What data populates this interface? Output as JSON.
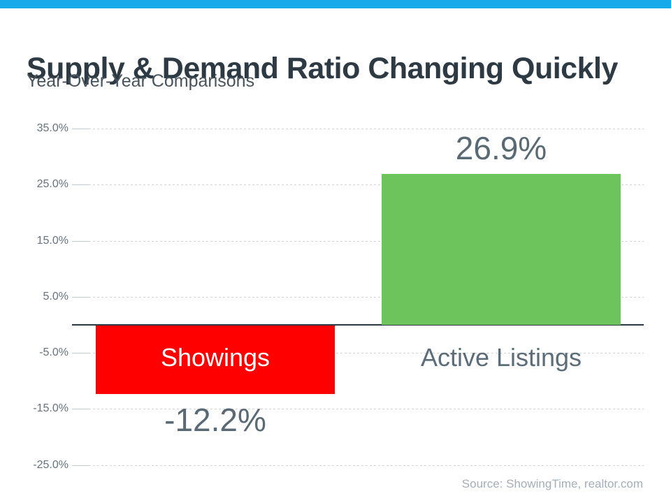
{
  "accent_color": "#17aaeb",
  "header": {
    "title": "Supply & Demand Ratio Changing Quickly",
    "subtitle": "Year-Over-Year Comparisons"
  },
  "chart_data": {
    "type": "bar",
    "title": "Supply & Demand Ratio Changing Quickly",
    "subtitle": "Year-Over-Year Comparisons",
    "categories": [
      "Showings",
      "Active Listings"
    ],
    "values": [
      -12.2,
      26.9
    ],
    "value_labels": [
      "-12.2%",
      "26.9%"
    ],
    "bar_colors": [
      "#fe0000",
      "#6dc35c"
    ],
    "category_label_colors": [
      "#ffffff",
      "#5b6d79"
    ],
    "ylim": [
      -25,
      35
    ],
    "yticks": [
      {
        "value": 35,
        "label": "35.0%"
      },
      {
        "value": 25,
        "label": "25.0%"
      },
      {
        "value": 15,
        "label": "15.0%"
      },
      {
        "value": 5,
        "label": "5.0%"
      },
      {
        "value": -5,
        "label": "-5.0%"
      },
      {
        "value": -15,
        "label": "-15.0%"
      },
      {
        "value": -25,
        "label": "-25.0%"
      }
    ],
    "grid": "horizontal-dashed",
    "legend": "none",
    "source": "Source: ShowingTime, realtor.com"
  }
}
